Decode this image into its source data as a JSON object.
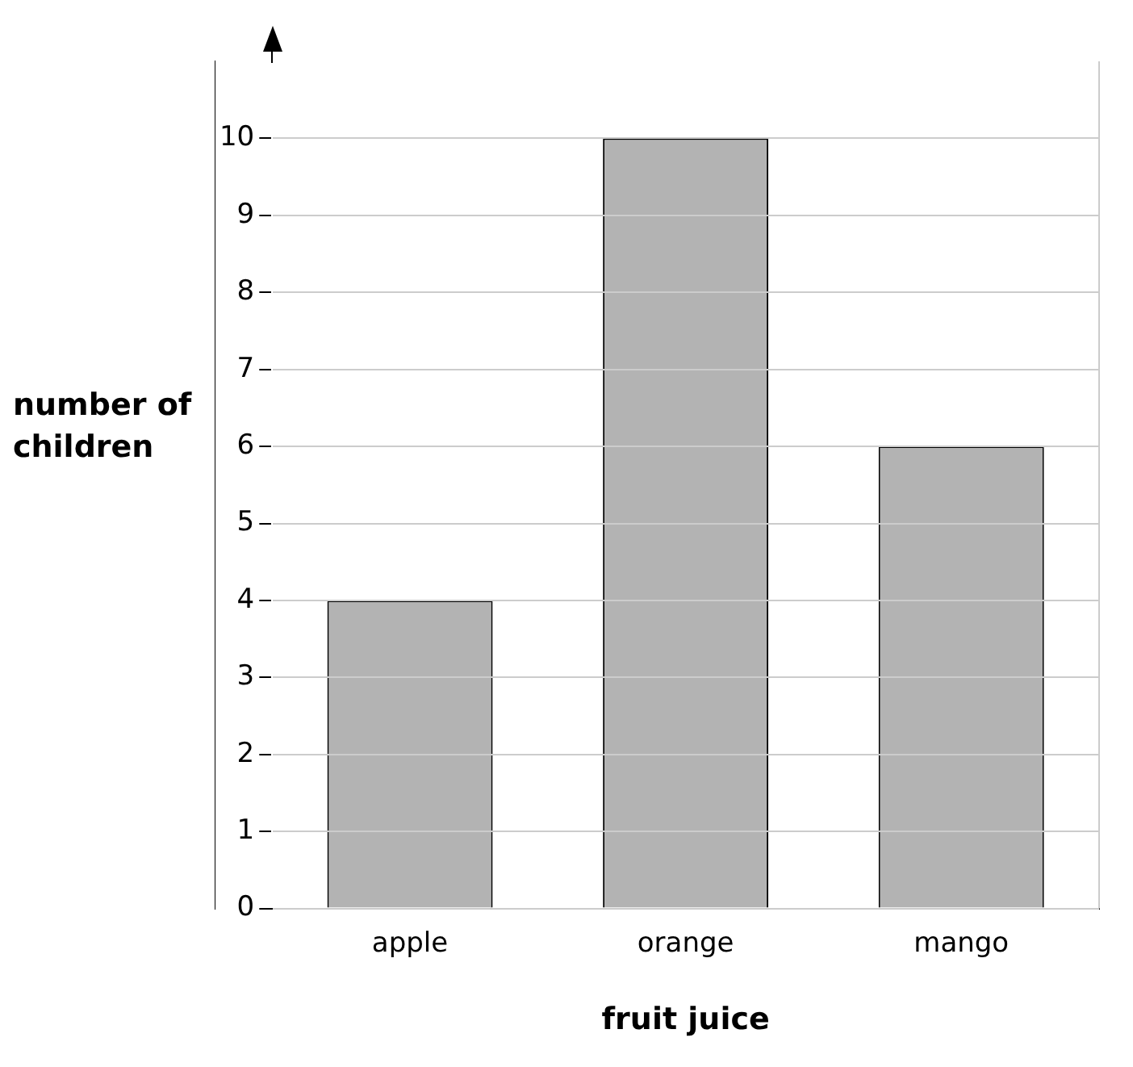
{
  "chart_data": {
    "type": "bar",
    "xlabel": "fruit juice",
    "ylabel": "number of children",
    "categories": [
      "apple",
      "orange",
      "mango"
    ],
    "values": [
      4,
      10,
      6
    ],
    "color": "#b3b3b3",
    "ylim": [
      0,
      11
    ],
    "yticks": [
      0,
      1,
      2,
      3,
      4,
      5,
      6,
      7,
      8,
      9,
      10
    ],
    "grid": "y",
    "legend": false
  }
}
